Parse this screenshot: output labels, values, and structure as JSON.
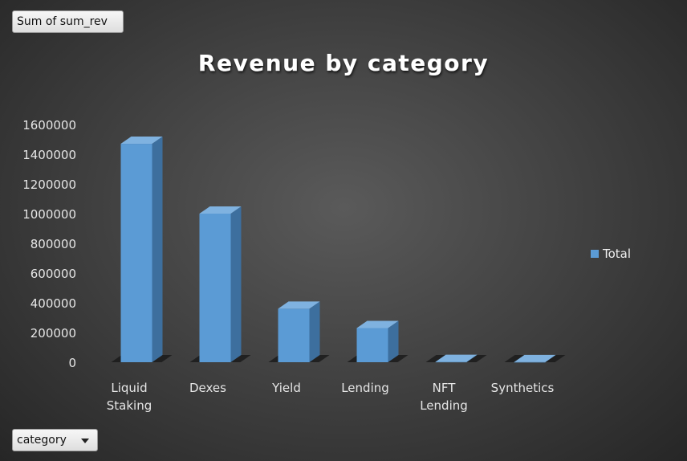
{
  "value_field_button": {
    "label": "Sum of sum_rev"
  },
  "axis_field_button": {
    "label": "category"
  },
  "chart_data": {
    "type": "bar",
    "title": "Revenue by category",
    "xlabel": "",
    "ylabel": "",
    "categories": [
      "Liquid Staking",
      "Dexes",
      "Yield",
      "Lending",
      "NFT Lending",
      "Synthetics"
    ],
    "series": [
      {
        "name": "Total",
        "values": [
          1470000,
          1000000,
          360000,
          230000,
          2000,
          1000
        ]
      }
    ],
    "ylim": [
      0,
      1600000
    ],
    "yticks": [
      0,
      200000,
      400000,
      600000,
      800000,
      1000000,
      1200000,
      1400000,
      1600000
    ],
    "grid": false,
    "legend_position": "right",
    "style": "3d-column",
    "colors": {
      "bar_front": "#5b9bd5",
      "bar_side": "#3d6f9e",
      "bar_top": "#7fb2e0",
      "background_center": "#5a5a5a",
      "background_edge": "#262626"
    }
  }
}
